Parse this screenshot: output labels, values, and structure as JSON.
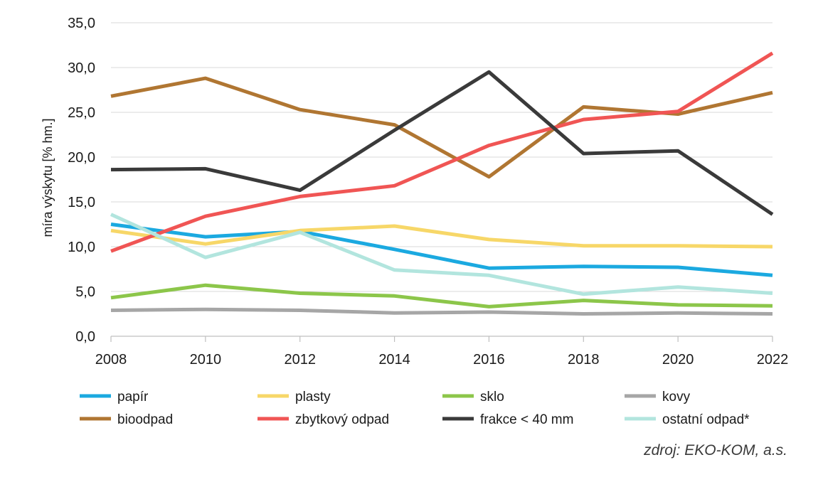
{
  "chart_data": {
    "type": "line",
    "x": [
      2008,
      2010,
      2012,
      2014,
      2016,
      2018,
      2020,
      2022
    ],
    "ylabel": "míra výskytu  [% hm.]",
    "xlabel": "",
    "ylim": [
      0,
      35
    ],
    "y_ticks": [
      "0,0",
      "5,0",
      "10,0",
      "15,0",
      "20,0",
      "25,0",
      "30,0",
      "35,0"
    ],
    "x_ticks": [
      "2008",
      "2010",
      "2012",
      "2014",
      "2016",
      "2018",
      "2020",
      "2022"
    ],
    "grid": "horizontal",
    "legend_position": "bottom",
    "series": [
      {
        "name": "papír",
        "color": "#1BA9E0",
        "values": [
          12.5,
          11.1,
          11.7,
          9.7,
          7.6,
          7.8,
          7.7,
          6.8
        ]
      },
      {
        "name": "plasty",
        "color": "#F7D768",
        "values": [
          11.8,
          10.3,
          11.8,
          12.3,
          10.8,
          10.1,
          10.1,
          10.0
        ]
      },
      {
        "name": "sklo",
        "color": "#8CC64A",
        "values": [
          4.3,
          5.7,
          4.8,
          4.5,
          3.3,
          4.0,
          3.5,
          3.4
        ]
      },
      {
        "name": "kovy",
        "color": "#A6A6A6",
        "values": [
          2.9,
          3.0,
          2.9,
          2.6,
          2.7,
          2.5,
          2.6,
          2.5
        ]
      },
      {
        "name": "bioodpad",
        "color": "#B07632",
        "values": [
          26.8,
          28.8,
          25.3,
          23.6,
          17.8,
          25.6,
          24.8,
          27.2
        ]
      },
      {
        "name": "zbytkový odpad",
        "color": "#F05554",
        "values": [
          9.5,
          13.4,
          15.6,
          16.8,
          21.3,
          24.2,
          25.1,
          31.6
        ]
      },
      {
        "name": "frakce < 40 mm",
        "color": "#3A3A3A",
        "values": [
          18.6,
          18.7,
          16.3,
          23.0,
          29.5,
          20.4,
          20.7,
          13.6
        ]
      },
      {
        "name": "ostatní odpad*",
        "color": "#B2E5DE",
        "values": [
          13.6,
          8.8,
          11.6,
          7.4,
          6.8,
          4.7,
          5.5,
          4.8
        ]
      }
    ]
  },
  "source_note": "zdroj: EKO-KOM, a.s."
}
